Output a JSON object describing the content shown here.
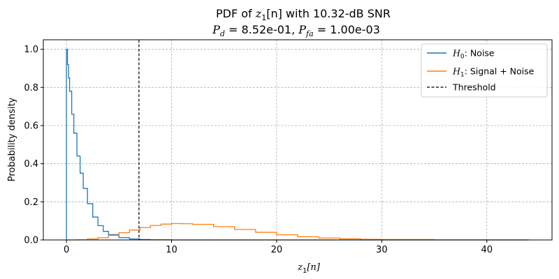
{
  "chart_data": {
    "type": "line",
    "title": {
      "line1_prefix": "PDF of ",
      "line1_var": "z",
      "line1_sub": "1",
      "line1_suffix": "[n] with 10.32-dB SNR",
      "pd_symbol": "P",
      "pd_sub": "d",
      "pd_eq": " = ",
      "pd_value": "8.52e-01",
      "sep": ", ",
      "pfa_symbol": "P",
      "pfa_sub": "fa",
      "pfa_eq": " = ",
      "pfa_value": "1.00e-03"
    },
    "xlabel": {
      "var": "z",
      "sub": "1",
      "suffix": "[n]"
    },
    "ylabel": "Probability density",
    "xlim": [
      -2.2,
      46.2
    ],
    "ylim": [
      0,
      1.05
    ],
    "xticks": [
      0,
      10,
      20,
      30,
      40
    ],
    "yticks": [
      0.0,
      0.2,
      0.4,
      0.6,
      0.8,
      1.0
    ],
    "grid": true,
    "legend_position": "top-right",
    "threshold": 6.9,
    "series": [
      {
        "name": "Noise",
        "legend_prefix": "H",
        "legend_sub": "0",
        "color": "#1f77b4",
        "x": [
          0,
          0.1,
          0.2,
          0.3,
          0.5,
          0.7,
          1.0,
          1.3,
          1.6,
          2.0,
          2.5,
          3.0,
          3.5,
          4.0,
          5.0,
          6.0,
          7.0,
          8.0,
          10.0,
          44.0
        ],
        "y": [
          1.0,
          0.92,
          0.85,
          0.78,
          0.66,
          0.56,
          0.44,
          0.35,
          0.27,
          0.19,
          0.12,
          0.075,
          0.045,
          0.028,
          0.012,
          0.005,
          0.002,
          0.001,
          0.0,
          0.0
        ]
      },
      {
        "name": "Signal + Noise",
        "legend_prefix": "H",
        "legend_sub": "1",
        "color": "#ff7f0e",
        "x": [
          0,
          1,
          2,
          3,
          4,
          5,
          6,
          7,
          8,
          9,
          10,
          11,
          12,
          14,
          16,
          18,
          20,
          22,
          24,
          26,
          28,
          30,
          35,
          40,
          44
        ],
        "y": [
          0.0,
          0.001,
          0.005,
          0.012,
          0.024,
          0.038,
          0.052,
          0.065,
          0.076,
          0.083,
          0.086,
          0.085,
          0.082,
          0.07,
          0.055,
          0.04,
          0.027,
          0.017,
          0.01,
          0.006,
          0.003,
          0.002,
          0.0005,
          0.0001,
          0.0
        ]
      }
    ],
    "threshold_legend": "Threshold"
  }
}
